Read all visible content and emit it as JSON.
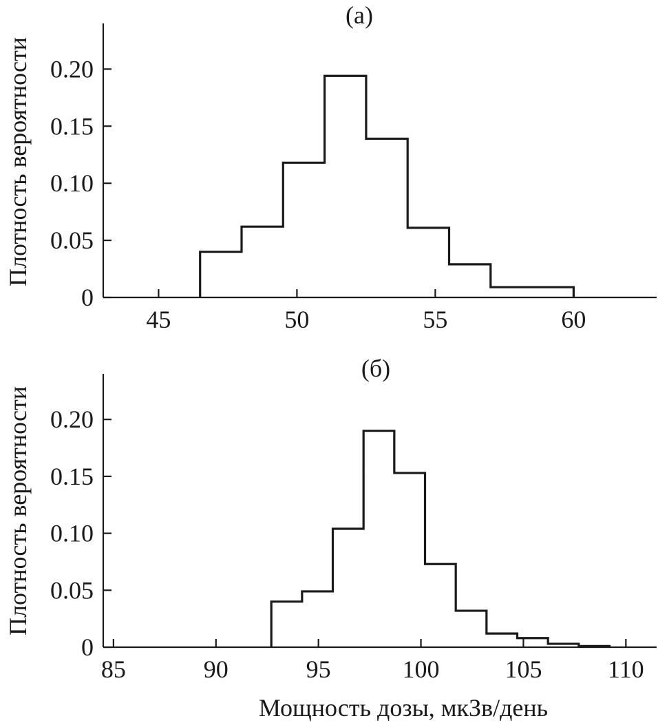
{
  "chart_data": [
    {
      "type": "histogram",
      "title": "(а)",
      "xlabel": "",
      "ylabel": "Плотность вероятности",
      "xlim": [
        43,
        63
      ],
      "ylim": [
        0,
        0.24
      ],
      "xticks": [
        45,
        50,
        55,
        60
      ],
      "xtick_labels": [
        "45",
        "50",
        "55",
        "60"
      ],
      "yticks": [
        0,
        0.05,
        0.1,
        0.15,
        0.2
      ],
      "ytick_labels": [
        "0",
        "0.05",
        "0.10",
        "0.15",
        "0.20"
      ],
      "grid": false,
      "bin_edges": [
        46.5,
        48.0,
        49.5,
        51.0,
        52.5,
        54.0,
        55.5,
        57.0,
        58.5,
        60.0
      ],
      "values": [
        0.04,
        0.062,
        0.118,
        0.194,
        0.139,
        0.061,
        0.029,
        0.009,
        0.009
      ]
    },
    {
      "type": "histogram",
      "title": "(б)",
      "xlabel": "Мощность дозы, мкЗв/день",
      "ylabel": "Плотность вероятности",
      "xlim": [
        84.5,
        111.5
      ],
      "ylim": [
        0,
        0.24
      ],
      "xticks": [
        85,
        90,
        95,
        100,
        105,
        110
      ],
      "xtick_labels": [
        "85",
        "90",
        "95",
        "100",
        "105",
        "110"
      ],
      "yticks": [
        0,
        0.05,
        0.1,
        0.15,
        0.2
      ],
      "ytick_labels": [
        "0",
        "0.05",
        "0.10",
        "0.15",
        "0.20"
      ],
      "grid": false,
      "bin_edges": [
        92.7,
        94.2,
        95.7,
        97.2,
        98.7,
        100.2,
        101.7,
        103.2,
        104.7,
        106.2,
        107.7,
        109.2
      ],
      "values": [
        0.04,
        0.049,
        0.104,
        0.19,
        0.153,
        0.073,
        0.032,
        0.012,
        0.008,
        0.003,
        0.001
      ]
    }
  ]
}
